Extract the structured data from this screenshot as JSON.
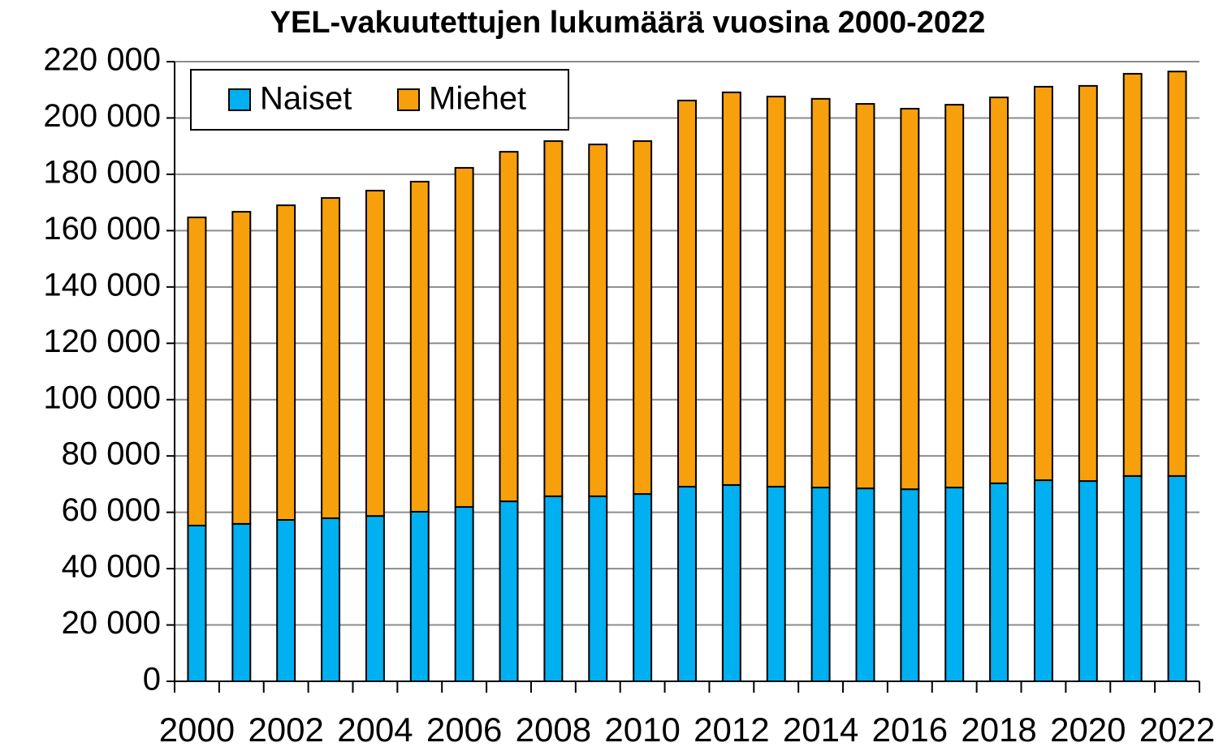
{
  "chart_data": {
    "type": "stacked-bar",
    "title": "YEL-vakuutettujen lukumäärä vuosina 2000-2022",
    "categories": [
      "2000",
      null,
      "2002",
      null,
      "2004",
      null,
      "2006",
      null,
      "2008",
      null,
      "2010",
      null,
      "2012",
      null,
      "2014",
      null,
      "2016",
      null,
      "2018",
      null,
      "2020",
      null,
      "2022"
    ],
    "series": [
      {
        "name": "Naiset",
        "color": "#00b0f0",
        "values": [
          55300,
          55900,
          57300,
          57900,
          58700,
          60200,
          61900,
          63900,
          65700,
          65700,
          66500,
          69100,
          69700,
          69100,
          68800,
          68500,
          68200,
          68800,
          70300,
          71400,
          71100,
          72900,
          72900
        ]
      },
      {
        "name": "Miehet",
        "color": "#f7a00c",
        "values": [
          109400,
          110800,
          111700,
          113700,
          115500,
          117200,
          120400,
          124100,
          126100,
          124900,
          125300,
          137100,
          139400,
          138500,
          138000,
          136500,
          135100,
          135900,
          137000,
          139700,
          140300,
          142800,
          143600
        ]
      }
    ],
    "ylim": [
      0,
      220000
    ],
    "yticks": [
      0,
      {
        "value": 20000,
        "label": "20 000"
      },
      {
        "value": 40000,
        "label": "40 000"
      },
      {
        "value": 60000,
        "label": "60 000"
      },
      {
        "value": 80000,
        "label": "80 000"
      },
      {
        "value": 100000,
        "label": "100 000"
      },
      {
        "value": 120000,
        "label": "120 000"
      },
      {
        "value": 140000,
        "label": "140 000"
      },
      {
        "value": 160000,
        "label": "160 000"
      },
      {
        "value": 180000,
        "label": "180 000"
      },
      {
        "value": 200000,
        "label": "200 000"
      },
      {
        "value": 220000,
        "label": "220 000"
      }
    ],
    "grid": true,
    "legend": "top-left"
  }
}
